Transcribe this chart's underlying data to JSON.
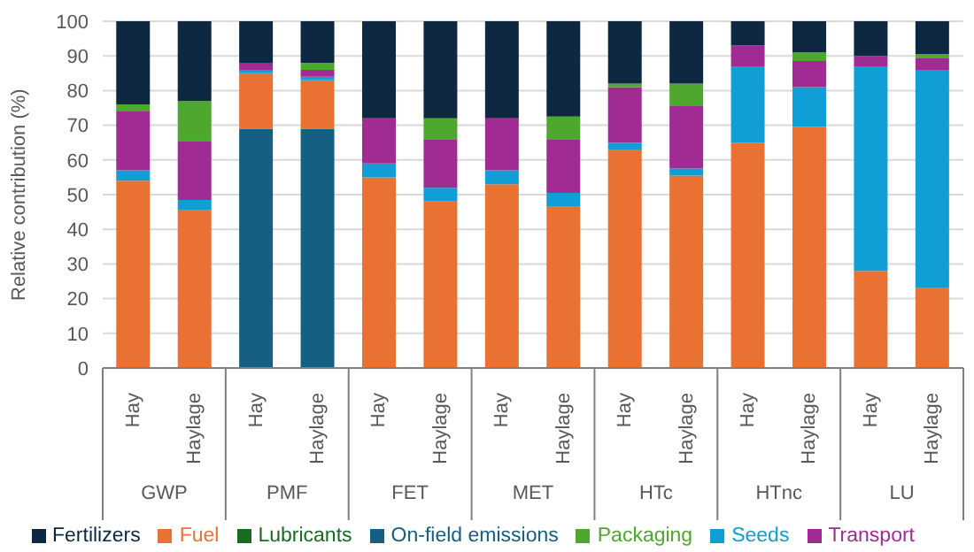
{
  "chart_data": {
    "type": "bar",
    "stacked": true,
    "ylabel": "Relative contribution (%)",
    "categories": [
      "Hay",
      "Haylage",
      "Hay",
      "Haylage",
      "Hay",
      "Haylage",
      "Hay",
      "Haylage",
      "Hay",
      "Haylage",
      "Hay",
      "Haylage",
      "Hay",
      "Haylage"
    ],
    "annotations": [
      "GWP",
      "PMF",
      "FET",
      "MET",
      "HTc",
      "HTnc",
      "LU"
    ],
    "ylim": [
      0,
      100
    ],
    "yticks": [
      0,
      10,
      20,
      30,
      40,
      50,
      60,
      70,
      80,
      90,
      100
    ],
    "grid": "y",
    "legend": "bottom",
    "series": [
      {
        "name": "On-field emissions",
        "color": "#156082",
        "values": [
          0,
          0,
          69,
          69,
          0,
          0,
          0,
          0,
          0,
          0,
          0,
          0,
          0,
          0
        ]
      },
      {
        "name": "Fuel",
        "color": "#e97132",
        "values": [
          54,
          45.5,
          16,
          14,
          55,
          48,
          53,
          46.5,
          63,
          55.5,
          65,
          69.5,
          28,
          23
        ]
      },
      {
        "name": "Lubricants",
        "color": "#196b24",
        "values": [
          0,
          0,
          0,
          0,
          0,
          0,
          0,
          0,
          0,
          0,
          0,
          0,
          0,
          0
        ]
      },
      {
        "name": "Seeds",
        "color": "#0f9ed5",
        "values": [
          3,
          3,
          1,
          1,
          4,
          4,
          4,
          4,
          2,
          2,
          22,
          11.5,
          59,
          63
        ]
      },
      {
        "name": "Transport",
        "color": "#a02b93",
        "values": [
          17,
          17,
          2,
          2,
          13,
          14,
          15,
          15.5,
          16,
          18,
          6,
          7.5,
          3,
          3.5
        ]
      },
      {
        "name": "Packaging",
        "color": "#4ea72e",
        "values": [
          2,
          11.5,
          0,
          2,
          0,
          6,
          0,
          6.5,
          1,
          6.5,
          0,
          2.5,
          0,
          1
        ]
      },
      {
        "name": "Fertilizers",
        "color": "#0e2841",
        "values": [
          24,
          23,
          12,
          12,
          28,
          28,
          28,
          27.5,
          18,
          18,
          7,
          9,
          10,
          9.5
        ]
      }
    ]
  }
}
